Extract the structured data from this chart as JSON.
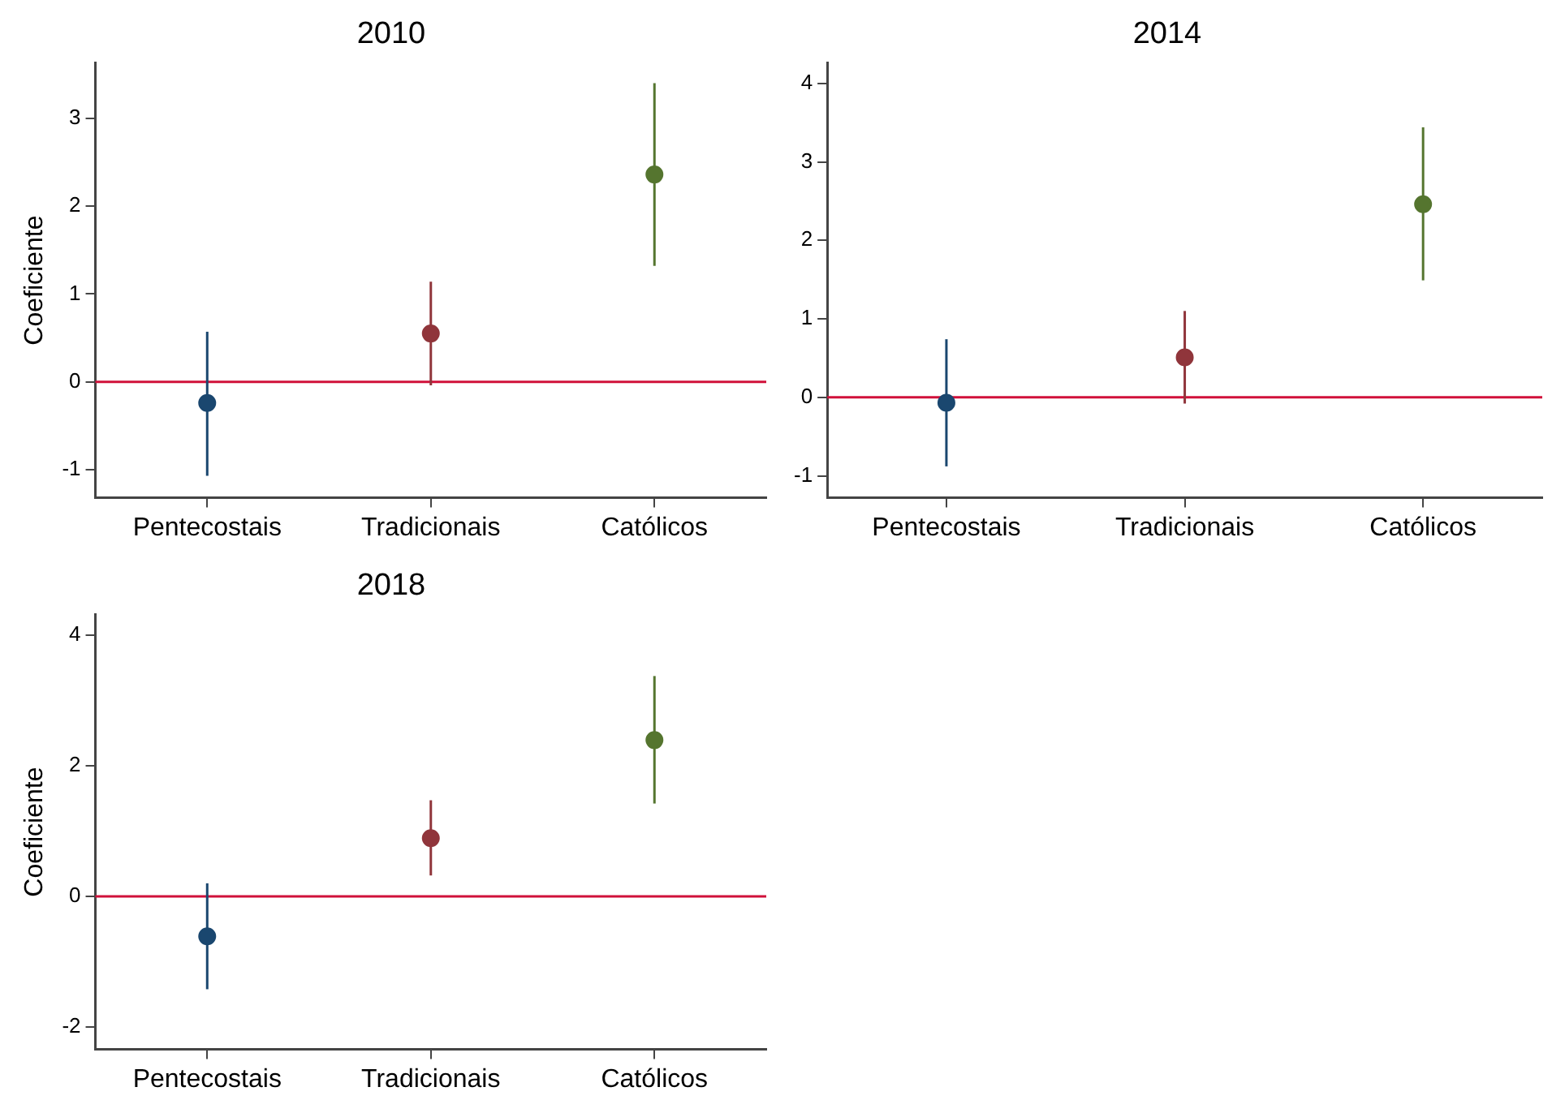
{
  "chart_data": [
    {
      "type": "scatter",
      "title": "2010",
      "ylabel": "Coeficiente",
      "categories": [
        "Pentecostais",
        "Tradicionais",
        "Católicos"
      ],
      "values": [
        -0.24,
        0.55,
        2.36
      ],
      "errors": [
        [
          -1.07,
          0.57
        ],
        [
          -0.04,
          1.14
        ],
        [
          1.32,
          3.4
        ]
      ],
      "colors": [
        "#1a476f",
        "#90353b",
        "#55752f"
      ],
      "marker": "circle",
      "ylim": [
        -1.32,
        3.63
      ],
      "yticks": [
        -1,
        0,
        1,
        2,
        3
      ],
      "ref_lines": [
        {
          "axis": "y",
          "value": 0,
          "color": "#d0103a"
        }
      ]
    },
    {
      "type": "scatter",
      "title": "2014",
      "categories": [
        "Pentecostais",
        "Tradicionais",
        "Católicos"
      ],
      "values": [
        -0.07,
        0.51,
        2.46
      ],
      "errors": [
        [
          -0.88,
          0.74
        ],
        [
          -0.08,
          1.1
        ],
        [
          1.49,
          3.44
        ]
      ],
      "colors": [
        "#1a476f",
        "#90353b",
        "#55752f"
      ],
      "marker": "circle",
      "ylim": [
        -1.28,
        4.26
      ],
      "yticks": [
        -1,
        0,
        1,
        2,
        3,
        4
      ],
      "ref_lines": [
        {
          "axis": "y",
          "value": 0,
          "color": "#d0103a"
        }
      ]
    },
    {
      "type": "scatter",
      "title": "2018",
      "ylabel": "Coeficiente",
      "categories": [
        "Pentecostais",
        "Tradicionais",
        "Católicos"
      ],
      "values": [
        -0.61,
        0.89,
        2.39
      ],
      "errors": [
        [
          -1.42,
          0.2
        ],
        [
          0.32,
          1.47
        ],
        [
          1.42,
          3.37
        ]
      ],
      "colors": [
        "#1a476f",
        "#90353b",
        "#55752f"
      ],
      "marker": "circle",
      "ylim": [
        -2.34,
        4.31
      ],
      "yticks": [
        -2,
        0,
        2,
        4
      ],
      "ref_lines": [
        {
          "axis": "y",
          "value": 0,
          "color": "#d0103a"
        }
      ]
    }
  ]
}
